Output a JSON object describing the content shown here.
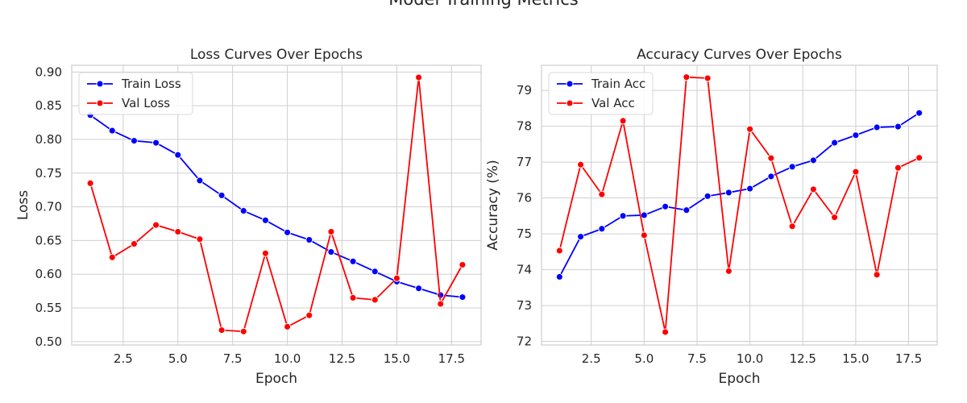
{
  "figure": {
    "suptitle": "Model Training Metrics"
  },
  "colors": {
    "train": "#0000ff",
    "val": "#ff0000",
    "grid": "#cfcfd2",
    "frame": "#cfcfd2",
    "text": "#262626"
  },
  "chart_data": [
    {
      "type": "line",
      "title": "Loss Curves Over Epochs",
      "xlabel": "Epoch",
      "ylabel": "Loss",
      "xlim": [
        0.15,
        18.85
      ],
      "ylim": [
        0.495,
        0.91
      ],
      "xticks": [
        2.5,
        5.0,
        7.5,
        10.0,
        12.5,
        15.0,
        17.5
      ],
      "xtick_labels": [
        "2.5",
        "5.0",
        "7.5",
        "10.0",
        "12.5",
        "15.0",
        "17.5"
      ],
      "yticks": [
        0.5,
        0.55,
        0.6,
        0.65,
        0.7,
        0.75,
        0.8,
        0.85,
        0.9
      ],
      "ytick_labels": [
        "0.50",
        "0.55",
        "0.60",
        "0.65",
        "0.70",
        "0.75",
        "0.80",
        "0.85",
        "0.90"
      ],
      "grid": true,
      "legend": "top-left",
      "x": [
        1,
        2,
        3,
        4,
        5,
        6,
        7,
        8,
        9,
        10,
        11,
        12,
        13,
        14,
        15,
        16,
        17,
        18
      ],
      "series": [
        {
          "name": "Train Loss",
          "color": "#0000ff",
          "values": [
            0.836,
            0.813,
            0.798,
            0.795,
            0.777,
            0.739,
            0.717,
            0.694,
            0.68,
            0.662,
            0.651,
            0.633,
            0.619,
            0.604,
            0.589,
            0.579,
            0.569,
            0.566
          ]
        },
        {
          "name": "Val Loss",
          "color": "#ff0000",
          "values": [
            0.735,
            0.625,
            0.645,
            0.673,
            0.663,
            0.652,
            0.517,
            0.515,
            0.631,
            0.522,
            0.539,
            0.663,
            0.565,
            0.562,
            0.594,
            0.892,
            0.556,
            0.614
          ]
        }
      ]
    },
    {
      "type": "line",
      "title": "Accuracy Curves Over Epochs",
      "xlabel": "Epoch",
      "ylabel": "Accuracy (%)",
      "xlim": [
        0.15,
        18.85
      ],
      "ylim": [
        71.9,
        79.7
      ],
      "xticks": [
        2.5,
        5.0,
        7.5,
        10.0,
        12.5,
        15.0,
        17.5
      ],
      "xtick_labels": [
        "2.5",
        "5.0",
        "7.5",
        "10.0",
        "12.5",
        "15.0",
        "17.5"
      ],
      "yticks": [
        72,
        73,
        74,
        75,
        76,
        77,
        78,
        79
      ],
      "ytick_labels": [
        "72",
        "73",
        "74",
        "75",
        "76",
        "77",
        "78",
        "79"
      ],
      "grid": true,
      "legend": "top-left",
      "x": [
        1,
        2,
        3,
        4,
        5,
        6,
        7,
        8,
        9,
        10,
        11,
        12,
        13,
        14,
        15,
        16,
        17,
        18
      ],
      "series": [
        {
          "name": "Train Acc",
          "color": "#0000ff",
          "values": [
            73.8,
            74.92,
            75.14,
            75.5,
            75.52,
            75.76,
            75.66,
            76.05,
            76.15,
            76.26,
            76.6,
            76.87,
            77.05,
            77.54,
            77.75,
            77.97,
            77.99,
            78.37
          ]
        },
        {
          "name": "Val Acc",
          "color": "#ff0000",
          "values": [
            74.53,
            76.93,
            76.1,
            78.15,
            74.96,
            72.26,
            79.37,
            79.34,
            73.96,
            77.92,
            77.11,
            75.21,
            76.24,
            75.46,
            76.73,
            73.86,
            76.84,
            77.12
          ]
        }
      ]
    }
  ]
}
